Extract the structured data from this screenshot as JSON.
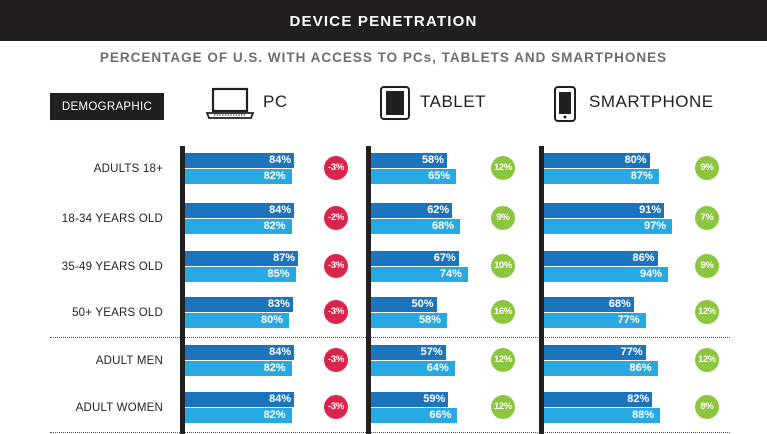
{
  "title": "DEVICE PENETRATION",
  "subtitle": "PERCENTAGE OF U.S. WITH ACCESS TO PCs, TABLETS AND SMARTPHONES",
  "demographic_label": "DEMOGRAPHIC",
  "colors": {
    "header_bg": "#231f20",
    "bar_top": "#1c75bc",
    "bar_bottom": "#27aae1",
    "change_negative": "#d9254b",
    "change_positive": "#8cc63f"
  },
  "chart_data": {
    "type": "bar",
    "title": "DEVICE PENETRATION",
    "subtitle": "PERCENTAGE OF U.S. WITH ACCESS TO PCs, TABLETS AND SMARTPHONES",
    "categories": [
      "ADULTS 18+",
      "18-34 YEARS OLD",
      "35-49 YEARS OLD",
      "50+ YEARS OLD",
      "ADULT MEN",
      "ADULT WOMEN"
    ],
    "devices": [
      {
        "name": "PC",
        "icon": "laptop-icon",
        "top_values": [
          84,
          84,
          87,
          83,
          84,
          84
        ],
        "bottom_values": [
          82,
          82,
          85,
          80,
          82,
          82
        ],
        "changes": [
          -3,
          -2,
          -3,
          -3,
          -3,
          -3
        ]
      },
      {
        "name": "TABLET",
        "icon": "tablet-icon",
        "top_values": [
          58,
          62,
          67,
          50,
          57,
          59
        ],
        "bottom_values": [
          65,
          68,
          74,
          58,
          64,
          66
        ],
        "changes": [
          12,
          9,
          10,
          16,
          12,
          12
        ]
      },
      {
        "name": "SMARTPHONE",
        "icon": "smartphone-icon",
        "top_values": [
          80,
          91,
          86,
          68,
          77,
          82
        ],
        "bottom_values": [
          87,
          97,
          94,
          77,
          86,
          88
        ],
        "changes": [
          9,
          7,
          9,
          12,
          12,
          8
        ]
      }
    ],
    "value_format": "percent",
    "grid": false,
    "legend": "none"
  }
}
